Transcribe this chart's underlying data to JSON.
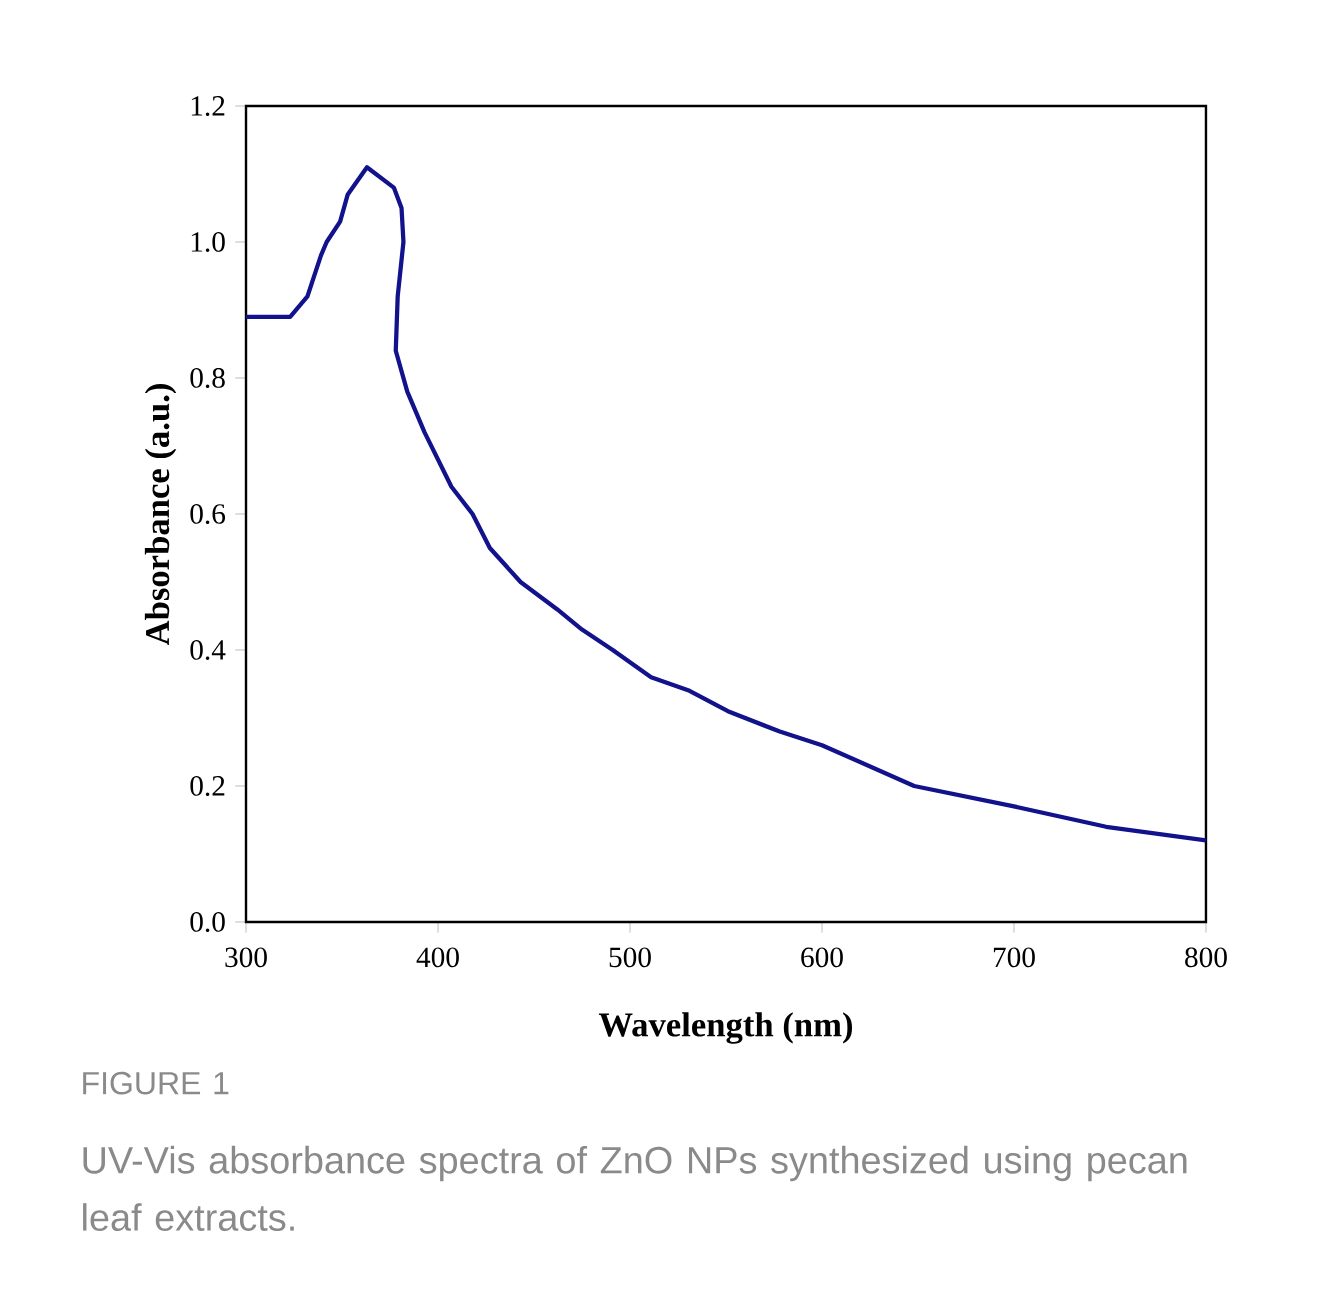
{
  "chart_data": {
    "type": "line",
    "xlabel": "Wavelength (nm)",
    "ylabel": "Absorbance (a.u.)",
    "annotations": [
      "FIGURE 1",
      "UV-Vis absorbance spectra of ZnO NPs synthesized using pecan leaf extracts."
    ],
    "xlim": [
      300,
      800
    ],
    "ylim": [
      0,
      1.2
    ],
    "xticks": [
      300,
      400,
      500,
      600,
      700,
      800
    ],
    "yticks": [
      {
        "value": 0,
        "label": "0.0"
      },
      {
        "value": 0.2,
        "label": "0.2"
      },
      {
        "value": 0.4,
        "label": "0.4"
      },
      {
        "value": 0.6,
        "label": "0.6"
      },
      {
        "value": 0.8,
        "label": "0.8"
      },
      {
        "value": 1.0,
        "label": "1.0"
      },
      {
        "value": 1.2,
        "label": "1.2"
      }
    ],
    "grid": false,
    "marker": "none",
    "line_style": "solid",
    "series": [
      {
        "color": "#12128c",
        "x": [
          300,
          323,
          332,
          339,
          342,
          349,
          353,
          363,
          377,
          381,
          382,
          379,
          378,
          384,
          393,
          407,
          418,
          427,
          443,
          462,
          475,
          491,
          511,
          531,
          551,
          578,
          600,
          648,
          700,
          748,
          800
        ],
        "values": [
          0.89,
          0.89,
          0.92,
          0.98,
          1.0,
          1.03,
          1.07,
          1.11,
          1.08,
          1.05,
          1.0,
          0.92,
          0.84,
          0.78,
          0.72,
          0.64,
          0.6,
          0.55,
          0.5,
          0.46,
          0.43,
          0.4,
          0.36,
          0.34,
          0.31,
          0.28,
          0.26,
          0.2,
          0.17,
          0.14,
          0.12
        ]
      }
    ]
  }
}
